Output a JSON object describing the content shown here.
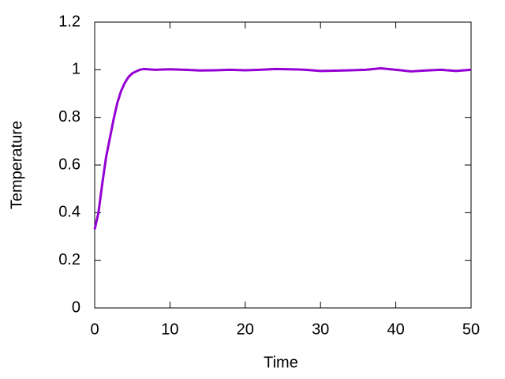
{
  "chart_data": {
    "type": "line",
    "xlabel": "Time",
    "ylabel": "Temperature",
    "xlim": [
      0,
      50
    ],
    "ylim": [
      0,
      1.2
    ],
    "xticks": [
      0,
      10,
      20,
      30,
      40,
      50
    ],
    "yticks": [
      0,
      0.2,
      0.4,
      0.6,
      0.8,
      1,
      1.2
    ],
    "x": [
      0,
      0.5,
      1,
      1.5,
      2,
      2.5,
      3,
      3.5,
      4,
      4.5,
      5,
      5.5,
      6,
      6.5,
      8,
      10,
      12,
      14,
      16,
      18,
      20,
      22,
      24,
      26,
      28,
      30,
      32,
      34,
      36,
      38,
      40,
      42,
      44,
      46,
      48,
      50
    ],
    "series": [
      {
        "color": "#9400d3",
        "values": [
          0.33,
          0.4,
          0.52,
          0.63,
          0.71,
          0.79,
          0.86,
          0.91,
          0.945,
          0.97,
          0.985,
          0.993,
          1.0,
          1.003,
          1.0,
          1.002,
          1.0,
          0.997,
          0.998,
          1.0,
          0.998,
          1.0,
          1.003,
          1.002,
          1.0,
          0.995,
          0.996,
          0.998,
          1.0,
          1.006,
          1.0,
          0.993,
          0.997,
          1.0,
          0.995,
          1.0
        ]
      }
    ]
  }
}
